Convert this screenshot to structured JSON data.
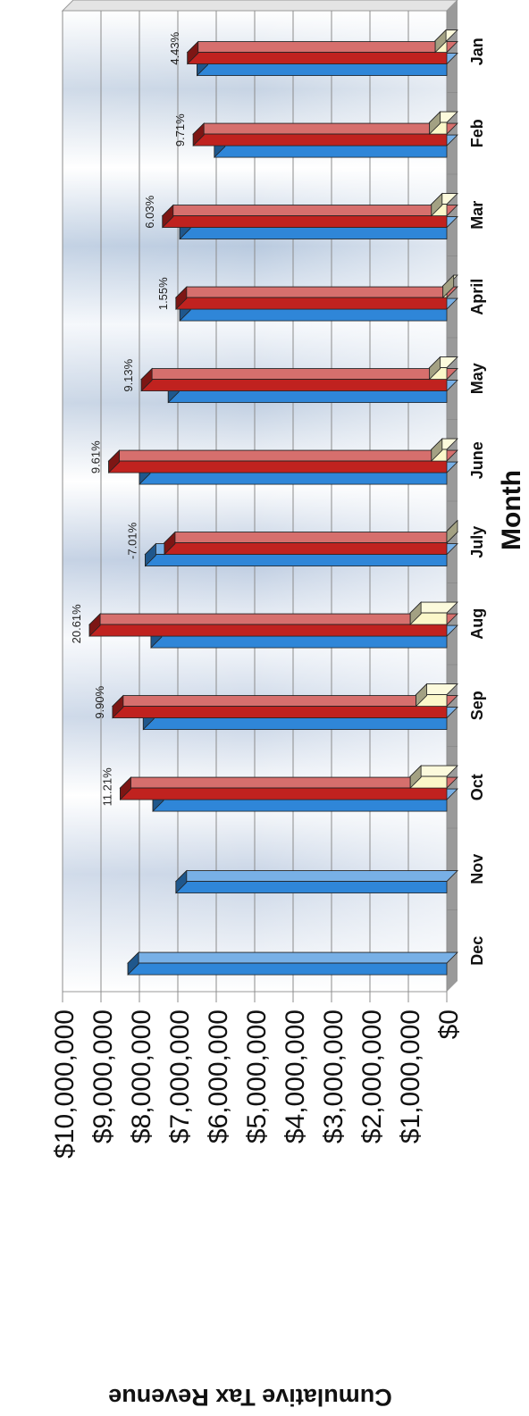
{
  "chart_data": {
    "type": "bar",
    "orientation": "rotated-90-clockwise",
    "title": "",
    "xlabel": "Month",
    "ylabel": "Cumulative Tax Revenue",
    "ylim": [
      0,
      10000000
    ],
    "yticks": [
      "$0",
      "$1,000,000",
      "$2,000,000",
      "$3,000,000",
      "$4,000,000",
      "$5,000,000",
      "$6,000,000",
      "$7,000,000",
      "$8,000,000",
      "$9,000,000",
      "$10,000,000"
    ],
    "categories": [
      "Jan",
      "Feb",
      "Mar",
      "April",
      "May",
      "June",
      "July",
      "Aug",
      "Sep",
      "Oct",
      "Nov",
      "Dec"
    ],
    "series": [
      {
        "values": [
          6500000,
          6050000,
          6950000,
          6950000,
          7250000,
          8000000,
          7850000,
          7700000,
          7900000,
          7650000,
          7050000,
          8300000
        ]
      },
      {
        "values": [
          6750000,
          6600000,
          7400000,
          7050000,
          7950000,
          8800000,
          7350000,
          9300000,
          8700000,
          8500000,
          null,
          null
        ]
      },
      {
        "values": [
          300000,
          450000,
          400000,
          100000,
          450000,
          400000,
          0,
          950000,
          800000,
          950000,
          null,
          null
        ]
      }
    ],
    "annotations": [
      "4.43%",
      "9.71%",
      "6.03%",
      "1.55%",
      "9.13%",
      "9.61%",
      "-7.01%",
      "20.61%",
      "9.90%",
      "11.21%",
      "",
      ""
    ],
    "colors": {
      "series0": "#2f86d8",
      "series1": "#c0221f",
      "series2": "#fbf7c9"
    },
    "grid": true,
    "legend": "none"
  }
}
